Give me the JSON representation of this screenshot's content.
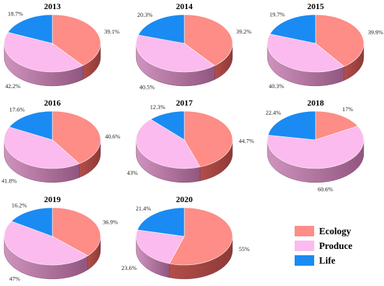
{
  "colors": {
    "ecology_top": "#fd8d86",
    "ecology_side": "#8e3a37",
    "produce_top": "#fbbbee",
    "produce_side_light": "#cf93bf",
    "produce_side_dark": "#91567f",
    "life_top": "#1a8bf2"
  },
  "legend": [
    {
      "key": "ecology",
      "label": "Ecology",
      "color": "#fd8d86"
    },
    {
      "key": "produce",
      "label": "Produce",
      "color": "#fbbbee"
    },
    {
      "key": "life",
      "label": "Life",
      "color": "#1a8bf2"
    }
  ],
  "chart_data": [
    {
      "type": "pie",
      "title": "2013",
      "labels": [
        "Ecology",
        "Produce",
        "Life"
      ],
      "values": [
        39.1,
        42.2,
        18.7
      ],
      "value_labels": [
        "39.1%",
        "42.2%",
        "18.7%"
      ]
    },
    {
      "type": "pie",
      "title": "2014",
      "labels": [
        "Ecology",
        "Produce",
        "Life"
      ],
      "values": [
        39.2,
        40.5,
        20.3
      ],
      "value_labels": [
        "39.2%",
        "40.5%",
        "20.3%"
      ]
    },
    {
      "type": "pie",
      "title": "2015",
      "labels": [
        "Ecology",
        "Produce",
        "Life"
      ],
      "values": [
        39.9,
        40.3,
        19.7
      ],
      "value_labels": [
        "39.9%",
        "40.3%",
        "19.7%"
      ]
    },
    {
      "type": "pie",
      "title": "2016",
      "labels": [
        "Ecology",
        "Produce",
        "Life"
      ],
      "values": [
        40.6,
        41.8,
        17.6
      ],
      "value_labels": [
        "40.6%",
        "41.8%",
        "17.6%"
      ]
    },
    {
      "type": "pie",
      "title": "2017",
      "labels": [
        "Ecology",
        "Produce",
        "Life"
      ],
      "values": [
        44.7,
        43.0,
        12.3
      ],
      "value_labels": [
        "44.7%",
        "43%",
        "12.3%"
      ]
    },
    {
      "type": "pie",
      "title": "2018",
      "labels": [
        "Ecology",
        "Produce",
        "Life"
      ],
      "values": [
        17.0,
        60.6,
        22.4
      ],
      "value_labels": [
        "17%",
        "60.6%",
        "22.4%"
      ]
    },
    {
      "type": "pie",
      "title": "2019",
      "labels": [
        "Ecology",
        "Produce",
        "Life"
      ],
      "values": [
        36.9,
        47.0,
        16.2
      ],
      "value_labels": [
        "36.9%",
        "47%",
        "16.2%"
      ]
    },
    {
      "type": "pie",
      "title": "2020",
      "labels": [
        "Ecology",
        "Produce",
        "Life"
      ],
      "values": [
        55.0,
        23.6,
        21.4
      ],
      "value_labels": [
        "55%",
        "23.6%",
        "21.4%"
      ]
    }
  ]
}
